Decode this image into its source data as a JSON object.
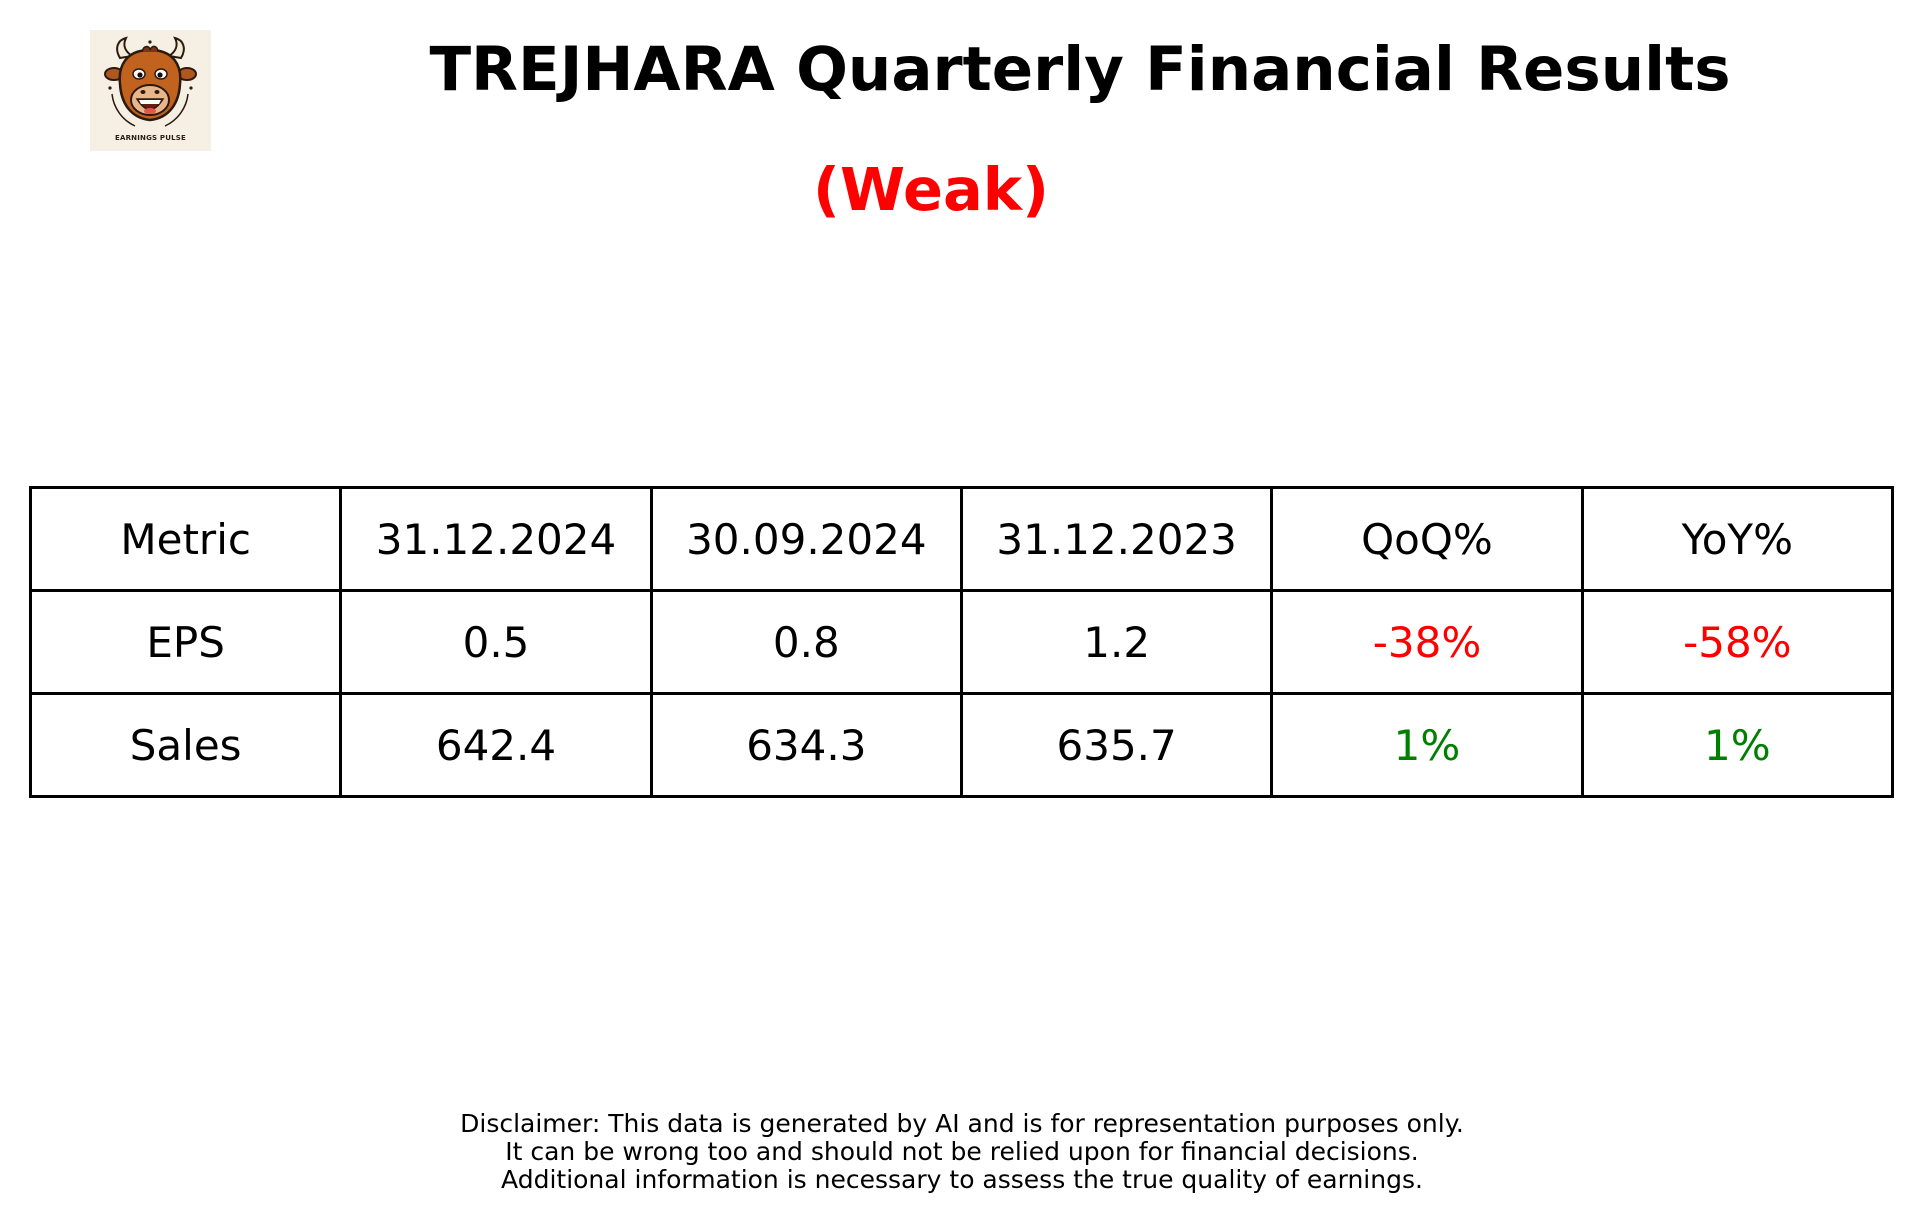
{
  "logo": {
    "text": "EARNINGS PULSE",
    "icon": "bull-mascot-icon",
    "background": "#f6efe3"
  },
  "title": "TREJHARA Quarterly Financial Results",
  "rating": {
    "text": "(Weak)",
    "color": "#ff0000"
  },
  "table": {
    "headers": [
      "Metric",
      "31.12.2024",
      "30.09.2024",
      "31.12.2023",
      "QoQ%",
      "YoY%"
    ],
    "rows": [
      {
        "metric": "EPS",
        "values": [
          "0.5",
          "0.8",
          "1.2"
        ],
        "qoq": "-38%",
        "qoq_color": "#ff0000",
        "yoy": "-58%",
        "yoy_color": "#ff0000"
      },
      {
        "metric": "Sales",
        "values": [
          "642.4",
          "634.3",
          "635.7"
        ],
        "qoq": "1%",
        "qoq_color": "#008000",
        "yoy": "1%",
        "yoy_color": "#008000"
      }
    ]
  },
  "disclaimer": [
    "Disclaimer: This data is generated by AI and is for representation purposes only.",
    "It can be wrong too and should not be relied upon for financial decisions.",
    "Additional information is necessary to assess the true quality of earnings."
  ]
}
